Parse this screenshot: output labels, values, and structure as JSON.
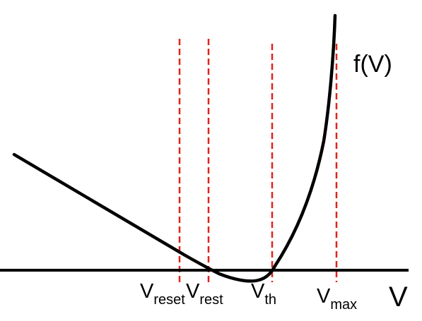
{
  "function_label": "f(V)",
  "axis_label": "V",
  "markers": [
    {
      "base": "V",
      "subscript": "reset"
    },
    {
      "base": "V",
      "subscript": "rest"
    },
    {
      "base": "V",
      "subscript": "th"
    },
    {
      "base": "V",
      "subscript": "max"
    }
  ],
  "colors": {
    "curve": "#000000",
    "axis": "#000000",
    "marker_lines": "#e0241b",
    "background": "#ffffff"
  },
  "style": {
    "marker_lines": "dashed"
  }
}
